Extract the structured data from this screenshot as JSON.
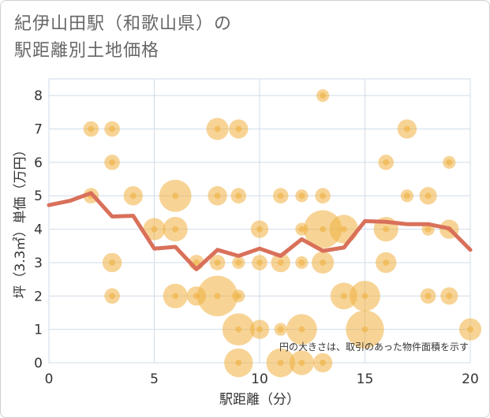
{
  "title": {
    "line1": "紀伊山田駅（和歌山県）の",
    "line2": "駅距離別土地価格"
  },
  "chart_data": {
    "type": "scatter",
    "xlabel": "駅距離（分）",
    "ylabel": "坪（3.3㎡）単価（万円）",
    "xlim": [
      0,
      20
    ],
    "ylim": [
      0,
      8.5
    ],
    "xticks": [
      0,
      5,
      10,
      15,
      20
    ],
    "yticks": [
      0,
      1,
      2,
      3,
      4,
      5,
      6,
      7,
      8
    ],
    "grid": true,
    "note": "円の大きさは、取引のあった物件面積を示す",
    "colors": {
      "bubble": "#f0b040",
      "line": "#d9705a",
      "grid": "#cfdce8"
    },
    "bubbles": [
      {
        "x": 2,
        "y": 7,
        "s": 1
      },
      {
        "x": 3,
        "y": 7,
        "s": 1
      },
      {
        "x": 8,
        "y": 7,
        "s": 3
      },
      {
        "x": 9,
        "y": 7,
        "s": 2
      },
      {
        "x": 17,
        "y": 7,
        "s": 2
      },
      {
        "x": 13,
        "y": 8,
        "s": 0.5
      },
      {
        "x": 3,
        "y": 6,
        "s": 1
      },
      {
        "x": 16,
        "y": 6,
        "s": 1
      },
      {
        "x": 19,
        "y": 6,
        "s": 0.5
      },
      {
        "x": 2,
        "y": 5,
        "s": 1
      },
      {
        "x": 4,
        "y": 5,
        "s": 2
      },
      {
        "x": 6,
        "y": 5,
        "s": 8
      },
      {
        "x": 8,
        "y": 5,
        "s": 2
      },
      {
        "x": 9,
        "y": 5,
        "s": 1
      },
      {
        "x": 11,
        "y": 5,
        "s": 1
      },
      {
        "x": 12,
        "y": 5,
        "s": 0.5
      },
      {
        "x": 13,
        "y": 5,
        "s": 1
      },
      {
        "x": 17,
        "y": 5,
        "s": 0.5
      },
      {
        "x": 18,
        "y": 5,
        "s": 1.5
      },
      {
        "x": 5,
        "y": 4,
        "s": 3
      },
      {
        "x": 6,
        "y": 4,
        "s": 4
      },
      {
        "x": 10,
        "y": 4,
        "s": 1.5
      },
      {
        "x": 12,
        "y": 4,
        "s": 0.5
      },
      {
        "x": 13,
        "y": 4,
        "s": 12
      },
      {
        "x": 14,
        "y": 4,
        "s": 6
      },
      {
        "x": 16,
        "y": 4,
        "s": 4
      },
      {
        "x": 18,
        "y": 4,
        "s": 0.5
      },
      {
        "x": 19,
        "y": 4,
        "s": 2
      },
      {
        "x": 3,
        "y": 3,
        "s": 2
      },
      {
        "x": 7,
        "y": 3,
        "s": 1
      },
      {
        "x": 8,
        "y": 3,
        "s": 1
      },
      {
        "x": 9,
        "y": 3,
        "s": 0.5
      },
      {
        "x": 10,
        "y": 3,
        "s": 1
      },
      {
        "x": 11,
        "y": 3,
        "s": 2
      },
      {
        "x": 12,
        "y": 3,
        "s": 0.5
      },
      {
        "x": 13,
        "y": 3,
        "s": 3
      },
      {
        "x": 16,
        "y": 3,
        "s": 2.5
      },
      {
        "x": 3,
        "y": 2,
        "s": 1
      },
      {
        "x": 6,
        "y": 2,
        "s": 4
      },
      {
        "x": 7,
        "y": 2,
        "s": 2
      },
      {
        "x": 8,
        "y": 2,
        "s": 14
      },
      {
        "x": 9,
        "y": 2,
        "s": 0.5
      },
      {
        "x": 14,
        "y": 2,
        "s": 5
      },
      {
        "x": 15,
        "y": 2,
        "s": 7
      },
      {
        "x": 18,
        "y": 2,
        "s": 1
      },
      {
        "x": 19,
        "y": 2,
        "s": 1.5
      },
      {
        "x": 9,
        "y": 1,
        "s": 8
      },
      {
        "x": 10,
        "y": 1,
        "s": 2
      },
      {
        "x": 11,
        "y": 1,
        "s": 0.5
      },
      {
        "x": 12,
        "y": 1,
        "s": 7
      },
      {
        "x": 15,
        "y": 1,
        "s": 12
      },
      {
        "x": 20,
        "y": 1,
        "s": 3
      },
      {
        "x": 9,
        "y": 0,
        "s": 6
      },
      {
        "x": 11,
        "y": 0,
        "s": 6
      },
      {
        "x": 12,
        "y": 0,
        "s": 4
      },
      {
        "x": 13,
        "y": 0,
        "s": 2
      }
    ],
    "line": [
      {
        "x": 0,
        "y": 4.72
      },
      {
        "x": 1,
        "y": 4.85
      },
      {
        "x": 2,
        "y": 5.08
      },
      {
        "x": 3,
        "y": 4.38
      },
      {
        "x": 4,
        "y": 4.4
      },
      {
        "x": 5,
        "y": 3.42
      },
      {
        "x": 6,
        "y": 3.47
      },
      {
        "x": 7,
        "y": 2.8
      },
      {
        "x": 8,
        "y": 3.38
      },
      {
        "x": 9,
        "y": 3.2
      },
      {
        "x": 10,
        "y": 3.42
      },
      {
        "x": 11,
        "y": 3.2
      },
      {
        "x": 12,
        "y": 3.7
      },
      {
        "x": 13,
        "y": 3.35
      },
      {
        "x": 14,
        "y": 3.45
      },
      {
        "x": 15,
        "y": 4.24
      },
      {
        "x": 16,
        "y": 4.22
      },
      {
        "x": 17,
        "y": 4.15
      },
      {
        "x": 18,
        "y": 4.15
      },
      {
        "x": 19,
        "y": 4.02
      },
      {
        "x": 20,
        "y": 3.38
      }
    ]
  }
}
